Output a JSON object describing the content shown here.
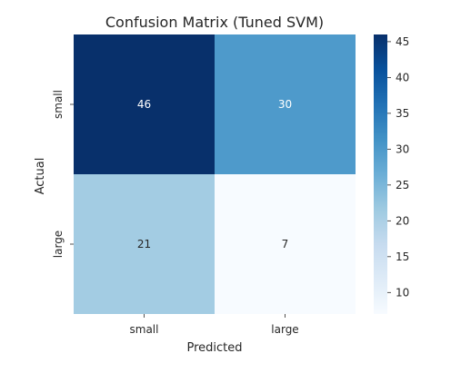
{
  "chart_data": {
    "type": "heatmap",
    "title": "Confusion Matrix (Tuned SVM)",
    "xlabel": "Predicted",
    "ylabel": "Actual",
    "x_categories": [
      "small",
      "large"
    ],
    "y_categories": [
      "small",
      "large"
    ],
    "values": [
      [
        46,
        30
      ],
      [
        21,
        7
      ]
    ],
    "colormap": "Blues",
    "colorbar": {
      "min": 7,
      "max": 46,
      "ticks": [
        "10",
        "15",
        "20",
        "25",
        "30",
        "35",
        "40",
        "45"
      ]
    }
  }
}
